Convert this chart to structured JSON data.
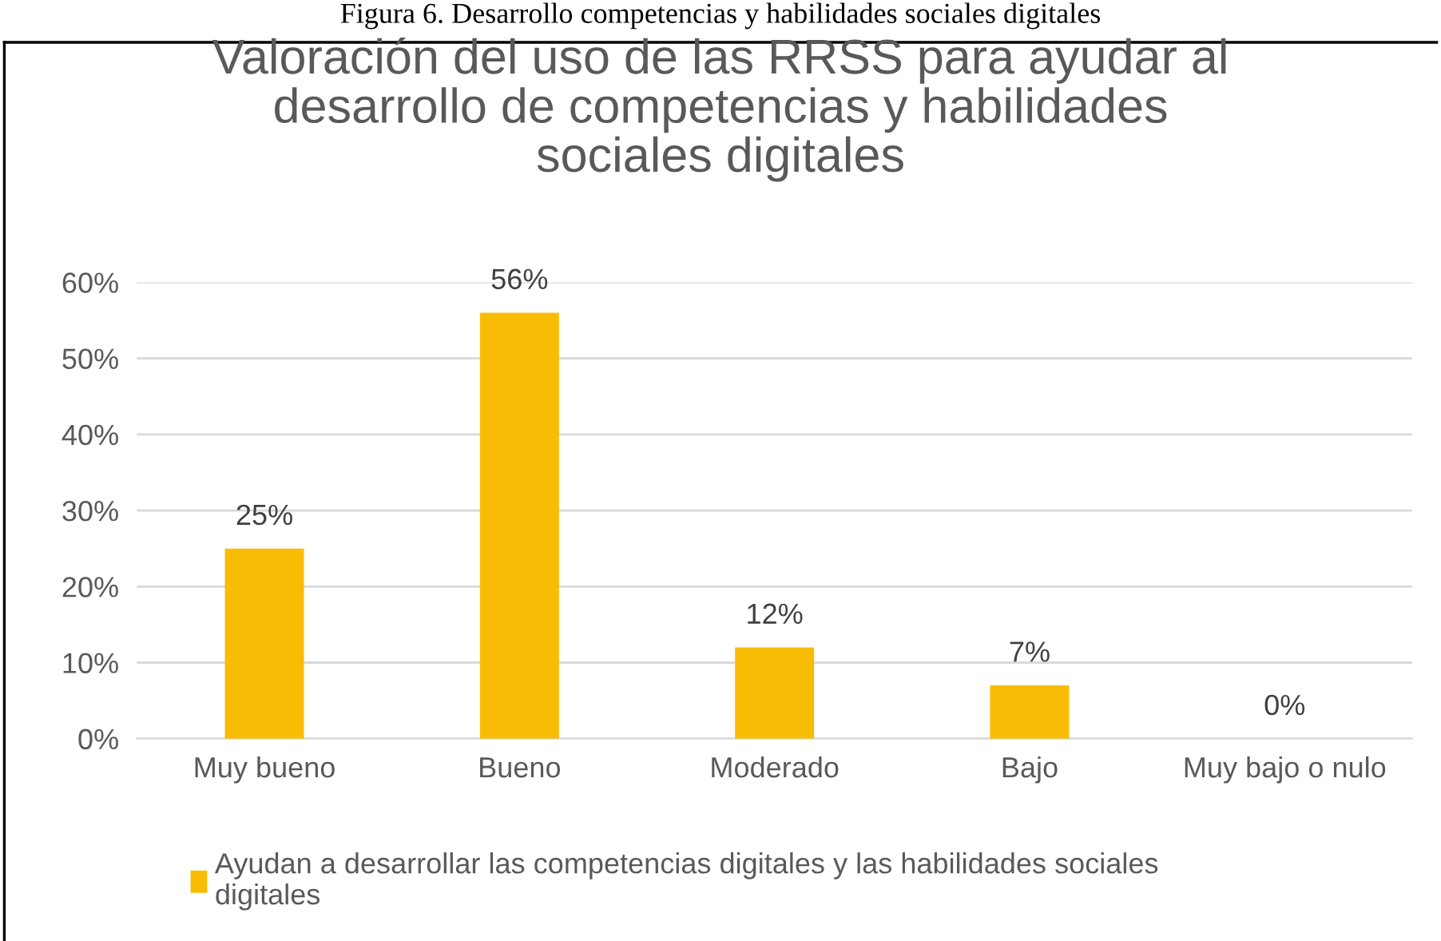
{
  "chart_data": {
    "type": "bar",
    "title": "Valoración del uso de las RRSS para ayudar al\ndesarrollo de competencias y habilidades\nsociales digitales",
    "annotations": [
      "Figura 6. Desarrollo competencias y habilidades sociales digitales"
    ],
    "categories": [
      "Muy bueno",
      "Bueno",
      "Moderado",
      "Bajo",
      "Muy bajo o nulo"
    ],
    "series": [
      {
        "name": "Ayudan a desarrollar las competencias digitales y las habilidades sociales\ndigitales",
        "color": "#f9bc05",
        "values": [
          25,
          56,
          12,
          7,
          0
        ],
        "value_labels": [
          "25%",
          "56%",
          "12%",
          "7%",
          "0%"
        ]
      }
    ],
    "ylim": [
      0,
      60
    ],
    "yticks": [
      {
        "value": 0,
        "label": "0%"
      },
      {
        "value": 10,
        "label": "10%"
      },
      {
        "value": 20,
        "label": "20%"
      },
      {
        "value": 30,
        "label": "30%"
      },
      {
        "value": 40,
        "label": "40%"
      },
      {
        "value": 50,
        "label": "50%"
      },
      {
        "value": 60,
        "label": "60%"
      }
    ],
    "grid": "y",
    "legend": "bottom"
  }
}
